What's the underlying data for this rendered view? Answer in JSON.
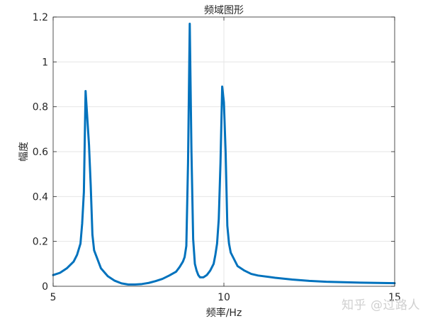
{
  "chart_data": {
    "type": "line",
    "title": "频域图形",
    "xlabel": "频率/Hz",
    "ylabel": "幅度",
    "xlim": [
      5,
      15
    ],
    "ylim": [
      0,
      1.2
    ],
    "xticks": [
      5,
      10,
      15
    ],
    "xtick_labels": [
      "5",
      "10",
      "15"
    ],
    "yticks": [
      0,
      0.2,
      0.4,
      0.6,
      0.8,
      1,
      1.2
    ],
    "ytick_labels": [
      "0",
      "0.2",
      "0.4",
      "0.6",
      "0.8",
      "1",
      "1.2"
    ],
    "grid": true,
    "line_color": "#0072BD",
    "series": [
      {
        "x": [
          5.0,
          5.2,
          5.4,
          5.6,
          5.7,
          5.8,
          5.85,
          5.9,
          5.95,
          6.0,
          6.05,
          6.1,
          6.15,
          6.2,
          6.3,
          6.4,
          6.6,
          6.8,
          7.0,
          7.2,
          7.4,
          7.6,
          7.8,
          8.0,
          8.2,
          8.4,
          8.6,
          8.7,
          8.8,
          8.85,
          8.9,
          8.95,
          9.0,
          9.05,
          9.1,
          9.15,
          9.2,
          9.25,
          9.3,
          9.4,
          9.5,
          9.6,
          9.7,
          9.75,
          9.8,
          9.85,
          9.9,
          9.95,
          10.0,
          10.05,
          10.1,
          10.15,
          10.2,
          10.3,
          10.4,
          10.6,
          10.8,
          11.0,
          11.5,
          12.0,
          12.5,
          13.0,
          13.5,
          14.0,
          14.5,
          15.0
        ],
        "y": [
          0.05,
          0.06,
          0.08,
          0.11,
          0.14,
          0.19,
          0.28,
          0.42,
          0.87,
          0.75,
          0.63,
          0.45,
          0.23,
          0.16,
          0.12,
          0.08,
          0.045,
          0.025,
          0.013,
          0.008,
          0.008,
          0.01,
          0.015,
          0.023,
          0.033,
          0.048,
          0.065,
          0.085,
          0.11,
          0.13,
          0.18,
          0.55,
          1.17,
          0.6,
          0.21,
          0.1,
          0.07,
          0.05,
          0.04,
          0.04,
          0.05,
          0.07,
          0.1,
          0.14,
          0.19,
          0.3,
          0.55,
          0.89,
          0.82,
          0.6,
          0.27,
          0.19,
          0.15,
          0.12,
          0.09,
          0.07,
          0.055,
          0.048,
          0.038,
          0.03,
          0.024,
          0.02,
          0.018,
          0.016,
          0.015,
          0.014
        ]
      }
    ]
  },
  "watermark": "知乎 @过路人"
}
